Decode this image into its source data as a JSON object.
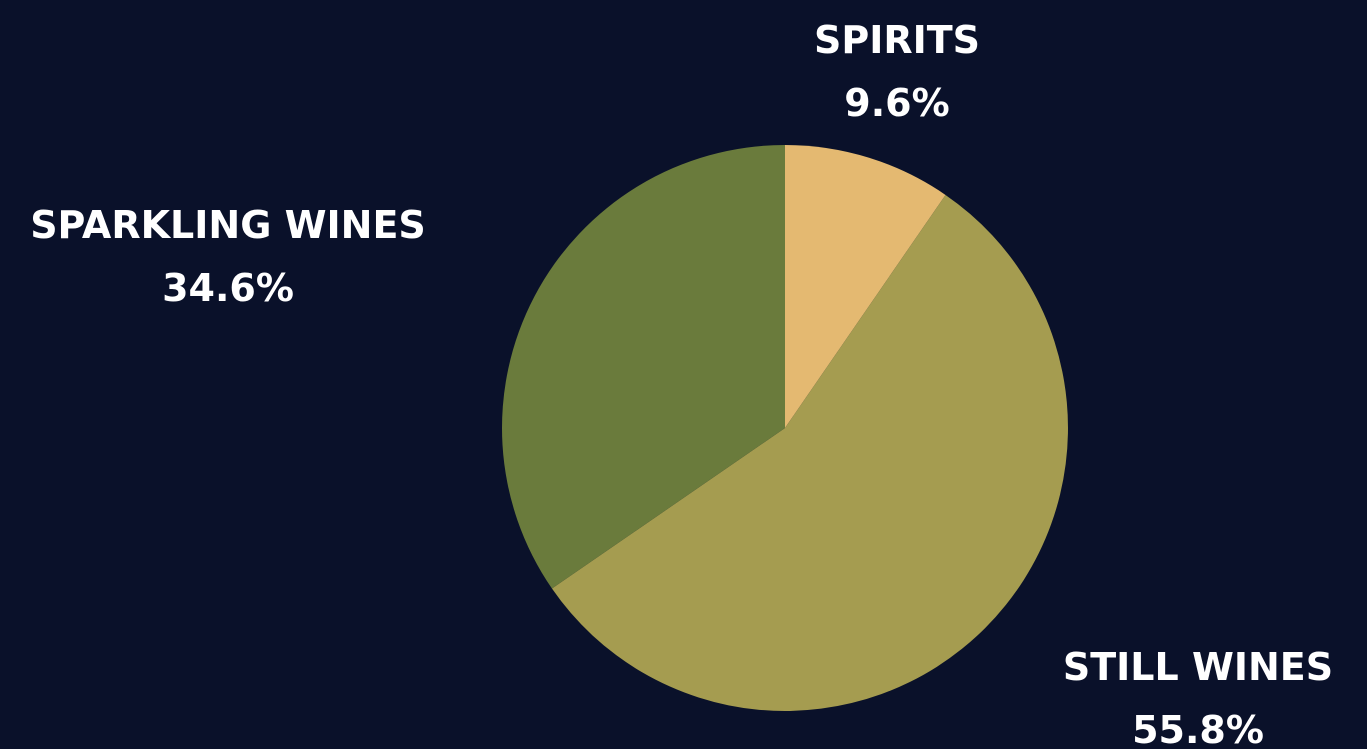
{
  "chart_data": {
    "type": "pie",
    "slices": [
      {
        "label": "SPIRITS",
        "value": 9.6,
        "value_label": "9.6%",
        "color": "#e4b971"
      },
      {
        "label": "STILL WINES",
        "value": 55.8,
        "value_label": "55.8%",
        "color": "#a59c50"
      },
      {
        "label": "SPARKLING WINES",
        "value": 34.6,
        "value_label": "34.6%",
        "color": "#6a7b3c"
      }
    ],
    "start_angle": "12 o'clock",
    "direction": "clockwise",
    "legend": "none",
    "background": "#0a112a",
    "label_color": "#ffffff"
  }
}
